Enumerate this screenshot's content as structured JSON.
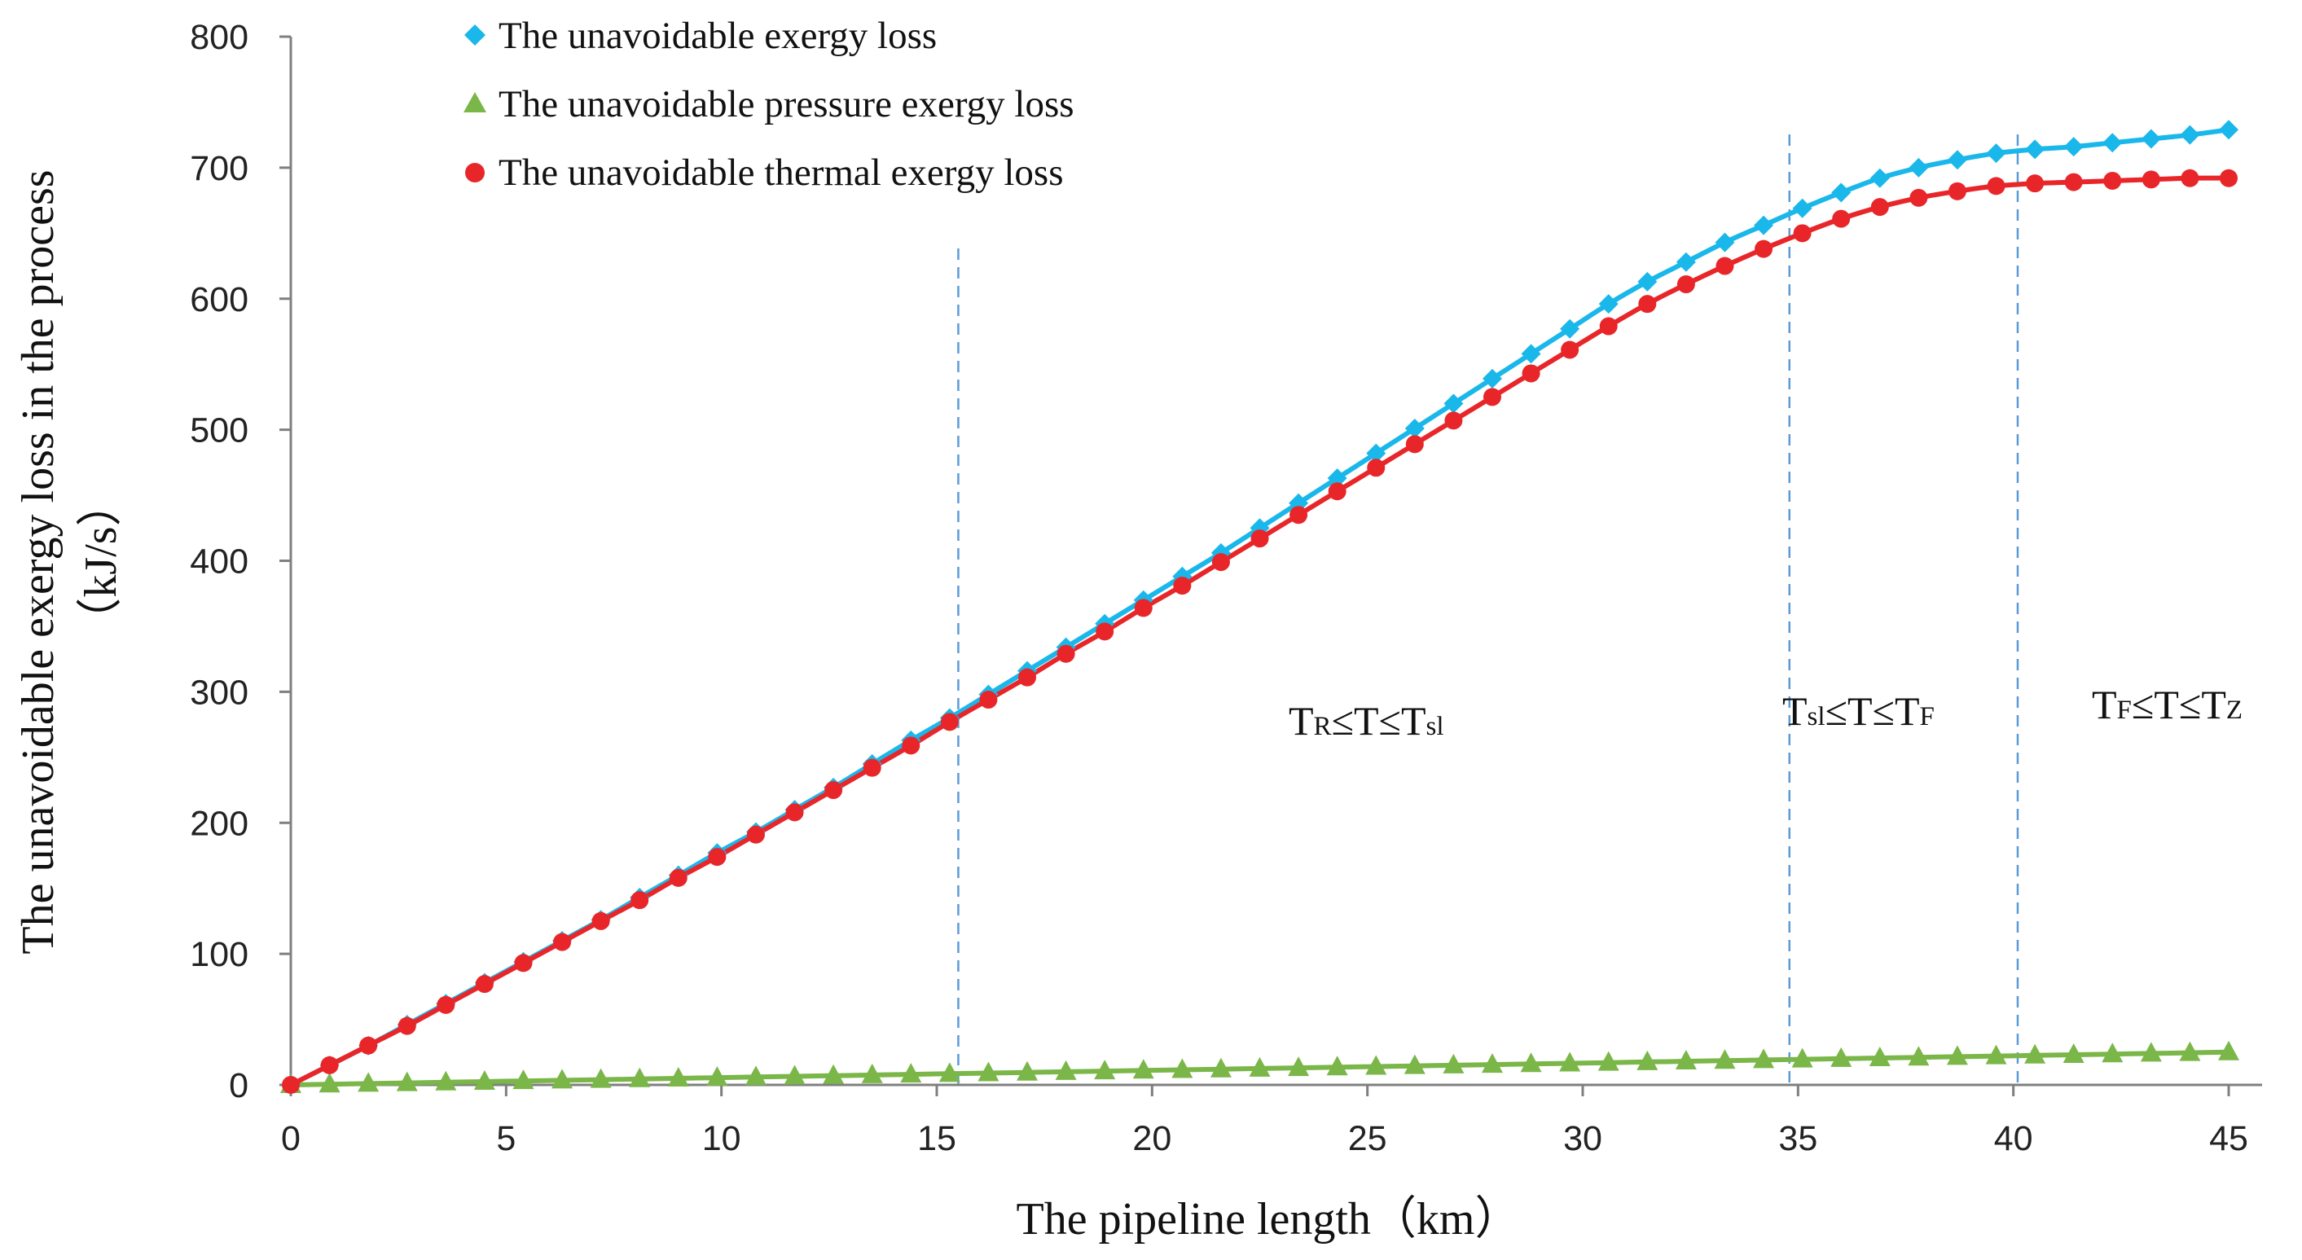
{
  "chart_data": {
    "type": "line",
    "xlabel": "The pipeline length（km）",
    "ylabel": "The unavoidable exergy  loss in the process",
    "ylabel_unit": "（kJ/s）",
    "xlim": [
      0,
      46
    ],
    "ylim": [
      0,
      800
    ],
    "xticks": [
      0,
      5,
      10,
      15,
      20,
      25,
      30,
      35,
      40,
      45
    ],
    "yticks": [
      0,
      100,
      200,
      300,
      400,
      500,
      600,
      700,
      800
    ],
    "legend_position": "top-left",
    "x": [
      0,
      0.9,
      1.8,
      2.7,
      3.6,
      4.5,
      5.4,
      6.3,
      7.2,
      8.1,
      9.0,
      9.9,
      10.8,
      11.7,
      12.6,
      13.5,
      14.4,
      15.3,
      16.2,
      17.1,
      18.0,
      18.9,
      19.8,
      20.7,
      21.6,
      22.5,
      23.4,
      24.3,
      25.2,
      26.1,
      27.0,
      27.9,
      28.8,
      29.7,
      30.6,
      31.5,
      32.4,
      33.3,
      34.2,
      35.1,
      36.0,
      36.9,
      37.8,
      38.7,
      39.6,
      40.5,
      41.4,
      42.3,
      43.2,
      44.1,
      45.0
    ],
    "series": [
      {
        "name": "The unavoidable exergy loss",
        "color": "#1ab7ea",
        "marker": "diamond",
        "values": [
          0,
          15,
          30,
          46,
          62,
          78,
          94,
          110,
          126,
          143,
          160,
          177,
          193,
          210,
          227,
          245,
          263,
          280,
          298,
          316,
          334,
          352,
          370,
          388,
          406,
          425,
          444,
          463,
          482,
          501,
          520,
          539,
          558,
          577,
          596,
          613,
          628,
          643,
          656,
          669,
          681,
          692,
          700,
          706,
          711,
          714,
          716,
          719,
          722,
          725,
          729
        ]
      },
      {
        "name": "The unavoidable pressure exergy loss",
        "color": "#7ab648",
        "marker": "triangle",
        "values": [
          0,
          0.5,
          1,
          1.5,
          2,
          2.5,
          3,
          3.5,
          4,
          4.5,
          5,
          5.5,
          6,
          6.5,
          7,
          7.5,
          8,
          8.5,
          9,
          9.5,
          10,
          10.5,
          11,
          11.5,
          12,
          12.5,
          13,
          13.5,
          14,
          14.5,
          15,
          15.5,
          16,
          16.5,
          17,
          17.5,
          18,
          18.5,
          19,
          19.5,
          20,
          20.5,
          21,
          21.5,
          22,
          22.5,
          23,
          23.5,
          24,
          24.5,
          25
        ]
      },
      {
        "name": "The unavoidable thermal exergy loss",
        "color": "#e8262a",
        "marker": "circle",
        "values": [
          0,
          15,
          30,
          45,
          61,
          77,
          93,
          109,
          125,
          141,
          158,
          174,
          191,
          208,
          225,
          242,
          259,
          277,
          294,
          311,
          329,
          346,
          364,
          381,
          399,
          417,
          435,
          453,
          471,
          489,
          507,
          525,
          543,
          561,
          579,
          596,
          611,
          625,
          638,
          650,
          661,
          670,
          677,
          682,
          686,
          688,
          689,
          690,
          691,
          692,
          692
        ]
      }
    ],
    "vlines": [
      15.5,
      34.8,
      40.1
    ],
    "annotations": [
      {
        "main1": "T",
        "sub1": "R",
        "mid": "≤T≤",
        "main2": "T",
        "sub2": "sl"
      },
      {
        "main1": "T",
        "sub1": "sl",
        "mid": "≤T≤",
        "main2": "T",
        "sub2": "F"
      },
      {
        "main1": "T",
        "sub1": "F",
        "mid": "≤T≤",
        "main2": "T",
        "sub2": "Z"
      }
    ]
  }
}
